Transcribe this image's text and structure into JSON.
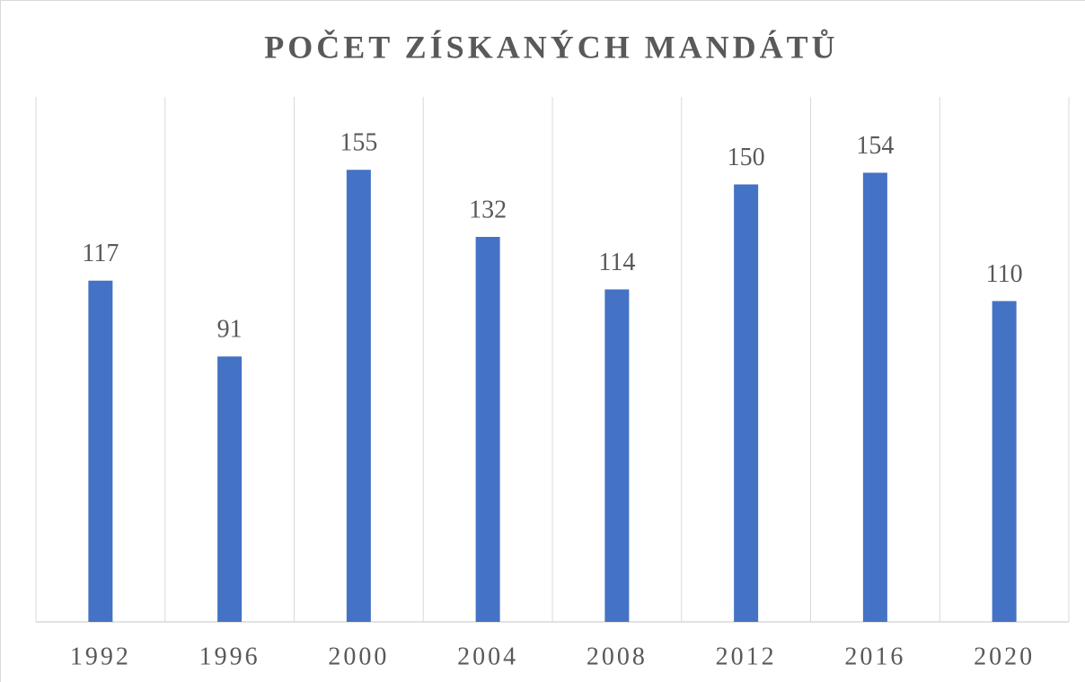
{
  "chart_data": {
    "type": "bar",
    "title": "POČET ZÍSKANÝCH MANDÁTŮ",
    "categories": [
      "1992",
      "1996",
      "2000",
      "2004",
      "2008",
      "2012",
      "2016",
      "2020"
    ],
    "values": [
      117,
      91,
      155,
      132,
      114,
      150,
      154,
      110
    ],
    "color": "#4472c4",
    "ylim": [
      0,
      180
    ],
    "grid": true
  }
}
